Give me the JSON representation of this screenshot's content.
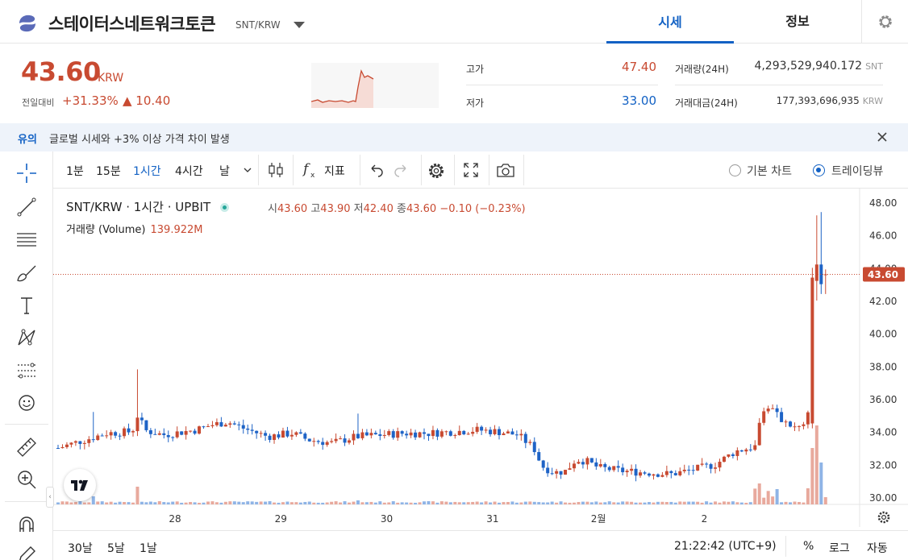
{
  "header": {
    "coin_name": "스테이터스네트워크토큰",
    "pair": "SNT/KRW",
    "tabs": [
      {
        "label": "시세",
        "active": true
      },
      {
        "label": "정보",
        "active": false
      }
    ]
  },
  "summary": {
    "price": "43.60",
    "currency": "KRW",
    "change_label": "전일대비",
    "change_rate": "+31.33%",
    "change_amount": "▲ 10.40",
    "stats": {
      "high_label": "고가",
      "high": "47.40",
      "low_label": "저가",
      "low": "33.00",
      "volume_label": "거래량(24H)",
      "volume": "4,293,529,940.172",
      "volume_unit": "SNT",
      "value_label": "거래대금(24H)",
      "value": "177,393,696,935",
      "value_unit": "KRW"
    },
    "colors": {
      "up": "#c84a31",
      "accent": "#1261c4"
    }
  },
  "notice": {
    "tag": "유의",
    "text": "글로벌 시세와 +3% 이상 가격 차이 발생"
  },
  "toolbar": {
    "intervals": [
      {
        "label": "1분",
        "active": false
      },
      {
        "label": "15분",
        "active": false
      },
      {
        "label": "1시간",
        "active": true
      },
      {
        "label": "4시간",
        "active": false
      },
      {
        "label": "날",
        "active": false
      }
    ],
    "indicators_label": "지표",
    "chart_modes": [
      {
        "label": "기본 차트",
        "selected": false
      },
      {
        "label": "트레이딩뷰",
        "selected": true
      }
    ]
  },
  "legend": {
    "symbol": "SNT/KRW",
    "interval": "1시간",
    "exchange": "UPBIT",
    "open_label": "시",
    "open": "43.60",
    "high_label": "고",
    "high": "43.90",
    "low_label": "저",
    "low": "42.40",
    "close_label": "종",
    "close": "43.60",
    "change": "−0.10 (−0.23%)",
    "volume_label": "거래량 (Volume)",
    "volume": "139.922M"
  },
  "chart_data": {
    "type": "candlestick",
    "y_ticks": [
      "48.00",
      "46.00",
      "44.00",
      "42.00",
      "40.00",
      "38.00",
      "36.00",
      "34.00",
      "32.00",
      "30.00"
    ],
    "ylim": [
      29.5,
      48.8
    ],
    "x_ticks": [
      "28",
      "29",
      "30",
      "31",
      "2월",
      "2"
    ],
    "last_price_label": "43.60",
    "colors": {
      "up": "#c84a31",
      "down": "#1e63c6",
      "vol_up": "#e8a99d",
      "vol_down": "#8fb4e6"
    },
    "bars_per_day": 24
  },
  "bottom": {
    "ranges": [
      "30날",
      "5날",
      "1날"
    ],
    "clock": "21:22:42 (UTC+9)",
    "options": [
      "%",
      "로그",
      "자동"
    ]
  }
}
